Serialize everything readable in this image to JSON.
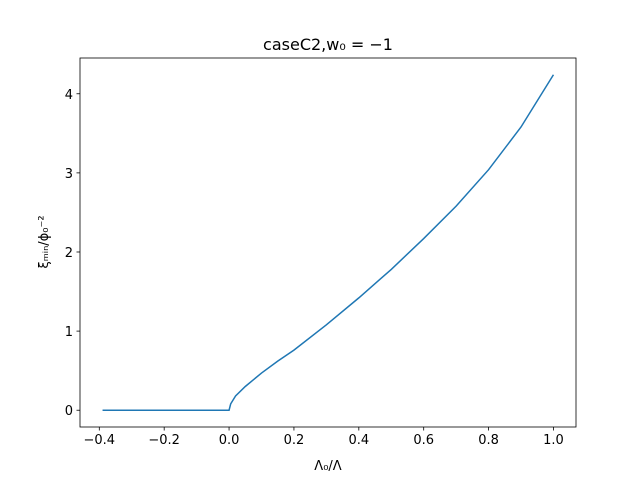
{
  "chart_data": {
    "type": "line",
    "title": "caseC2,w₀ = −1",
    "x_label": "Λ₀/Λ",
    "y_label": "ξₘᵢₙ/ϕ₀⁻²",
    "x": [
      -0.39,
      0,
      0.005,
      0.02,
      0.05,
      0.1,
      0.15,
      0.2,
      0.3,
      0.4,
      0.5,
      0.6,
      0.7,
      0.8,
      0.9,
      1.0
    ],
    "series": [
      {
        "color": "#1f77b4",
        "values": [
          0,
          0,
          0.08,
          0.18,
          0.3,
          0.47,
          0.62,
          0.76,
          1.08,
          1.42,
          1.78,
          2.17,
          2.58,
          3.04,
          3.58,
          4.24
        ]
      }
    ],
    "xlim": [
      -0.4595,
      1.0695
    ],
    "ylim": [
      -0.212,
      4.452
    ],
    "xticks": [
      {
        "value": -0.4,
        "label": "−0.4"
      },
      {
        "value": -0.2,
        "label": "−0.2"
      },
      {
        "value": 0,
        "label": "0.0"
      },
      0.2,
      0.4,
      0.6,
      0.8,
      {
        "value": 1,
        "label": "1.0"
      }
    ],
    "yticks": [
      0,
      1,
      2,
      3,
      4
    ]
  }
}
